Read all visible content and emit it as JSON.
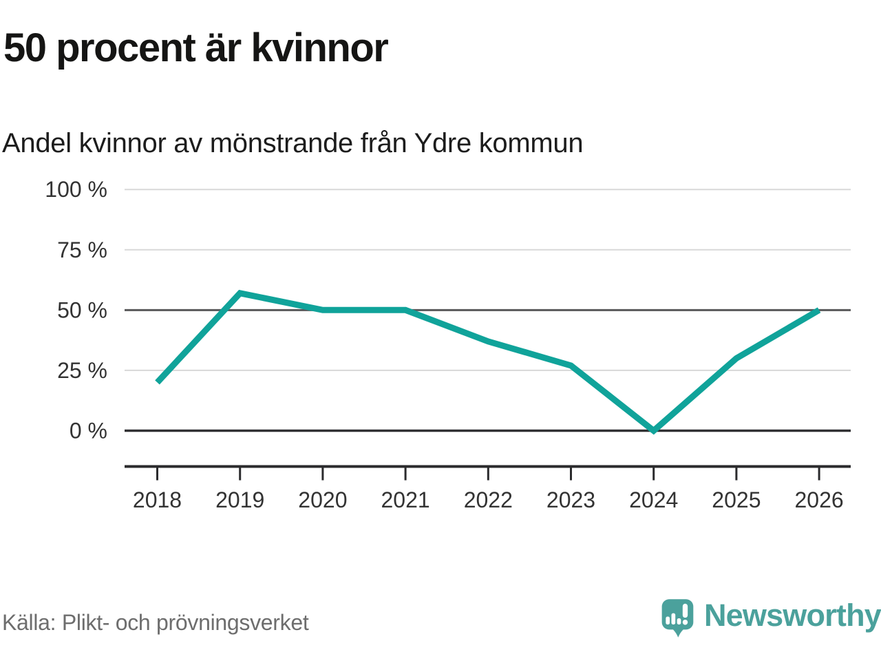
{
  "header": {
    "title": "50 procent är kvinnor",
    "subtitle": "Andel kvinnor av mönstrande från Ydre kommun"
  },
  "chart_data": {
    "type": "line",
    "title": "50 procent är kvinnor",
    "subtitle": "Andel kvinnor av mönstrande från Ydre kommun",
    "x": [
      2018,
      2019,
      2020,
      2021,
      2022,
      2023,
      2024,
      2025,
      2026
    ],
    "series": [
      {
        "name": "Andel kvinnor av mönstrande (%)",
        "values": [
          20,
          57,
          50,
          50,
          37,
          27,
          0,
          30,
          50
        ]
      }
    ],
    "xlabel": "",
    "ylabel": "",
    "ylim": [
      0,
      100
    ],
    "y_ticks": [
      100,
      75,
      50,
      25,
      0
    ],
    "y_tick_labels": [
      "100 %",
      "75 %",
      "50 %",
      "25 %",
      "0 %"
    ],
    "grid": "horizontal",
    "legend_position": "none",
    "line_color": "#10a39a",
    "emphasized_gridlines": [
      0,
      50
    ],
    "light_gridline_color": "#d8d8d8",
    "dark_gridline_color": "#58585a",
    "zero_line_color": "#303032",
    "axis_color": "#2b2b2d"
  },
  "footer": {
    "source": "Källa: Plikt- och prövningsverket",
    "brand_name": "Newsworthy",
    "brand_color": "#4ba19c",
    "logo_icon": "speech-bubble-bar-chart-exclamation"
  }
}
